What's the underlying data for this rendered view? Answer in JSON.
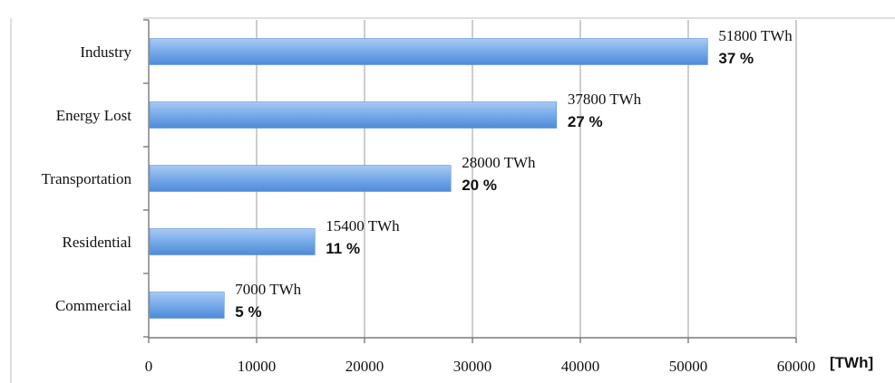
{
  "chart_data": {
    "type": "bar",
    "orientation": "horizontal",
    "categories": [
      "Industry",
      "Energy Lost",
      "Transportation",
      "Residential",
      "Commercial"
    ],
    "values": [
      51800,
      37800,
      28000,
      15400,
      7000
    ],
    "value_labels": [
      "51800 TWh",
      "37800 TWh",
      "28000 TWh",
      "15400 TWh",
      "7000 TWh"
    ],
    "percent_labels": [
      "37 %",
      "27 %",
      "20 %",
      "11 %",
      "5 %"
    ],
    "xlim": [
      0,
      60000
    ],
    "x_ticks": [
      0,
      10000,
      20000,
      30000,
      40000,
      50000,
      60000
    ],
    "x_tick_labels": [
      "0",
      "10000",
      "20000",
      "30000",
      "40000",
      "50000",
      "60000"
    ],
    "x_unit": "[TWh]",
    "grid": "vertical",
    "bar_color": "#6fa3e8"
  }
}
